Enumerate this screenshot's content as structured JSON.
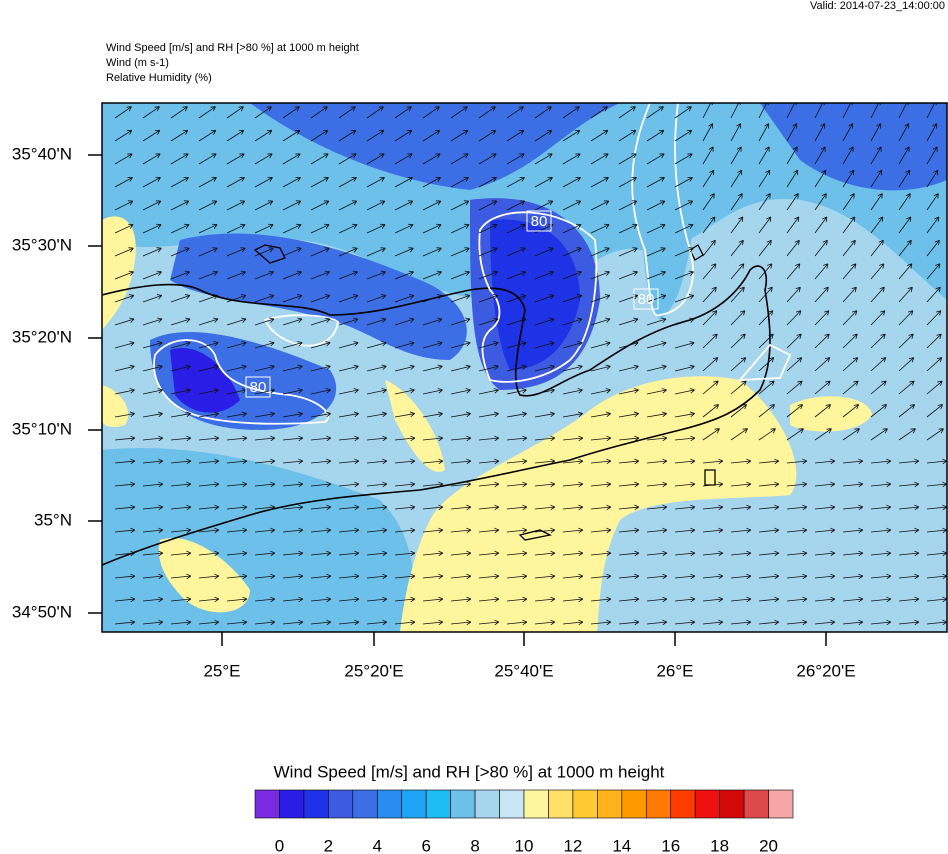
{
  "header": {
    "valid": "Valid: 2014-07-23_14:00:00",
    "lines": [
      "Wind Speed [m/s] and RH [>80 %] at 1000 m height",
      "Wind   (m s-1)",
      "Relative Humidity   (%)"
    ]
  },
  "map": {
    "lat_labels": [
      "35°40'N",
      "35°30'N",
      "35°20'N",
      "35°10'N",
      "35°N",
      "34°50'N"
    ],
    "lon_labels": [
      "25°E",
      "25°20'E",
      "25°40'E",
      "26°E",
      "26°20'E"
    ],
    "contour_labels": [
      "80",
      "80",
      "80"
    ]
  },
  "colorbar": {
    "title": "Wind Speed [m/s] and RH [>80 %] at 1000 m height",
    "colors": [
      "#7a2be2",
      "#2a1ee6",
      "#1e32e6",
      "#3d5be0",
      "#3c6fe6",
      "#2a8cf0",
      "#1ea5f5",
      "#1ebef5",
      "#6cc0ea",
      "#a6d6ee",
      "#c8e6f4",
      "#fff59d",
      "#ffe066",
      "#ffc933",
      "#ffb31a",
      "#ff9900",
      "#ff7a00",
      "#ff3c00",
      "#ef1010",
      "#d40a0a",
      "#dc4a4a",
      "#f4a6a6"
    ],
    "ticks": [
      0,
      2,
      4,
      6,
      8,
      10,
      12,
      14,
      16,
      18,
      20
    ]
  }
}
